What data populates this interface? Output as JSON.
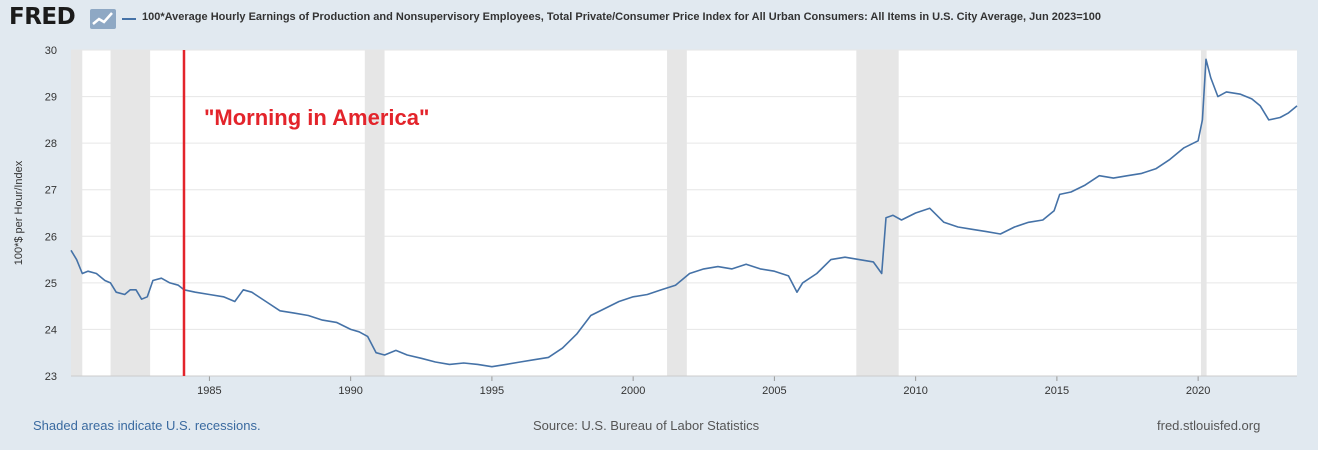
{
  "header": {
    "logo_text": "FRED",
    "logo_icon": "chart-trend-icon",
    "series_title": "100*Average Hourly Earnings of Production and Nonsupervisory Employees, Total Private/Consumer Price Index for All Urban Consumers: All Items in U.S. City Average, Jun 2023=100"
  },
  "colors": {
    "line": "#4572a7",
    "recession": "#e6e6e6",
    "annotation": "#e3242b",
    "grid": "#e6e6e6",
    "plot_bg": "#ffffff",
    "page_bg": "#e1e9f0"
  },
  "chart_data": {
    "type": "line",
    "title": "100*Average Hourly Earnings of Production and Nonsupervisory Employees, Total Private/Consumer Price Index for All Urban Consumers: All Items in U.S. City Average, Jun 2023=100",
    "xlabel": "",
    "ylabel": "100*$ per Hour/Index",
    "xlim": [
      1980.1,
      2023.5
    ],
    "ylim": [
      23,
      30
    ],
    "grid": true,
    "legend": "top",
    "x_ticks": [
      1985,
      1990,
      1995,
      2000,
      2005,
      2010,
      2015,
      2020
    ],
    "y_ticks": [
      23,
      24,
      25,
      26,
      27,
      28,
      29,
      30
    ],
    "recessions": [
      [
        1980.0,
        1980.5
      ],
      [
        1981.5,
        1982.9
      ],
      [
        1990.5,
        1991.2
      ],
      [
        2001.2,
        2001.9
      ],
      [
        2007.9,
        2009.4
      ],
      [
        2020.1,
        2020.3
      ]
    ],
    "annotations": [
      {
        "x": 1984.1,
        "label": "\"Morning in America\""
      }
    ],
    "series": [
      {
        "name": "100*Average Hourly Earnings of Production and Nonsupervisory Employees, Total Private/Consumer Price Index for All Urban Consumers: All Items in U.S. City Average, Jun 2023=100",
        "x": [
          1980.1,
          1980.3,
          1980.5,
          1980.7,
          1981.0,
          1981.3,
          1981.5,
          1981.7,
          1982.0,
          1982.2,
          1982.4,
          1982.6,
          1982.8,
          1983.0,
          1983.3,
          1983.6,
          1983.9,
          1984.1,
          1984.5,
          1985.0,
          1985.5,
          1985.9,
          1986.2,
          1986.5,
          1987.0,
          1987.5,
          1988.0,
          1988.5,
          1989.0,
          1989.5,
          1990.0,
          1990.3,
          1990.6,
          1990.9,
          1991.2,
          1991.6,
          1992.0,
          1992.5,
          1993.0,
          1993.5,
          1994.0,
          1994.5,
          1995.0,
          1995.5,
          1996.0,
          1996.5,
          1997.0,
          1997.5,
          1998.0,
          1998.5,
          1999.0,
          1999.5,
          2000.0,
          2000.5,
          2001.0,
          2001.5,
          2002.0,
          2002.5,
          2003.0,
          2003.5,
          2004.0,
          2004.5,
          2005.0,
          2005.5,
          2005.8,
          2006.0,
          2006.5,
          2007.0,
          2007.5,
          2008.0,
          2008.5,
          2008.8,
          2008.95,
          2009.2,
          2009.5,
          2010.0,
          2010.5,
          2011.0,
          2011.5,
          2012.0,
          2012.5,
          2013.0,
          2013.5,
          2014.0,
          2014.5,
          2014.9,
          2015.1,
          2015.5,
          2016.0,
          2016.5,
          2017.0,
          2017.5,
          2018.0,
          2018.5,
          2019.0,
          2019.5,
          2020.0,
          2020.15,
          2020.28,
          2020.45,
          2020.7,
          2021.0,
          2021.5,
          2021.9,
          2022.2,
          2022.5,
          2022.9,
          2023.2,
          2023.5
        ],
        "values": [
          25.7,
          25.5,
          25.2,
          25.25,
          25.2,
          25.05,
          25.0,
          24.8,
          24.75,
          24.85,
          24.85,
          24.65,
          24.7,
          25.05,
          25.1,
          25.0,
          24.95,
          24.85,
          24.8,
          24.75,
          24.7,
          24.6,
          24.85,
          24.8,
          24.6,
          24.4,
          24.35,
          24.3,
          24.2,
          24.15,
          24.0,
          23.95,
          23.85,
          23.5,
          23.45,
          23.55,
          23.45,
          23.38,
          23.3,
          23.25,
          23.28,
          23.25,
          23.2,
          23.25,
          23.3,
          23.35,
          23.4,
          23.6,
          23.9,
          24.3,
          24.45,
          24.6,
          24.7,
          24.75,
          24.85,
          24.95,
          25.2,
          25.3,
          25.35,
          25.3,
          25.4,
          25.3,
          25.25,
          25.15,
          24.8,
          25.0,
          25.2,
          25.5,
          25.55,
          25.5,
          25.45,
          25.2,
          26.4,
          26.45,
          26.35,
          26.5,
          26.6,
          26.3,
          26.2,
          26.15,
          26.1,
          26.05,
          26.2,
          26.3,
          26.35,
          26.55,
          26.9,
          26.95,
          27.1,
          27.3,
          27.25,
          27.3,
          27.35,
          27.45,
          27.65,
          27.9,
          28.05,
          28.5,
          29.8,
          29.4,
          29.0,
          29.1,
          29.05,
          28.95,
          28.8,
          28.5,
          28.55,
          28.65,
          28.8
        ]
      }
    ]
  },
  "footer": {
    "left": "Shaded areas indicate U.S. recessions.",
    "center": "Source: U.S. Bureau of Labor Statistics",
    "right": "fred.stlouisfed.org"
  }
}
